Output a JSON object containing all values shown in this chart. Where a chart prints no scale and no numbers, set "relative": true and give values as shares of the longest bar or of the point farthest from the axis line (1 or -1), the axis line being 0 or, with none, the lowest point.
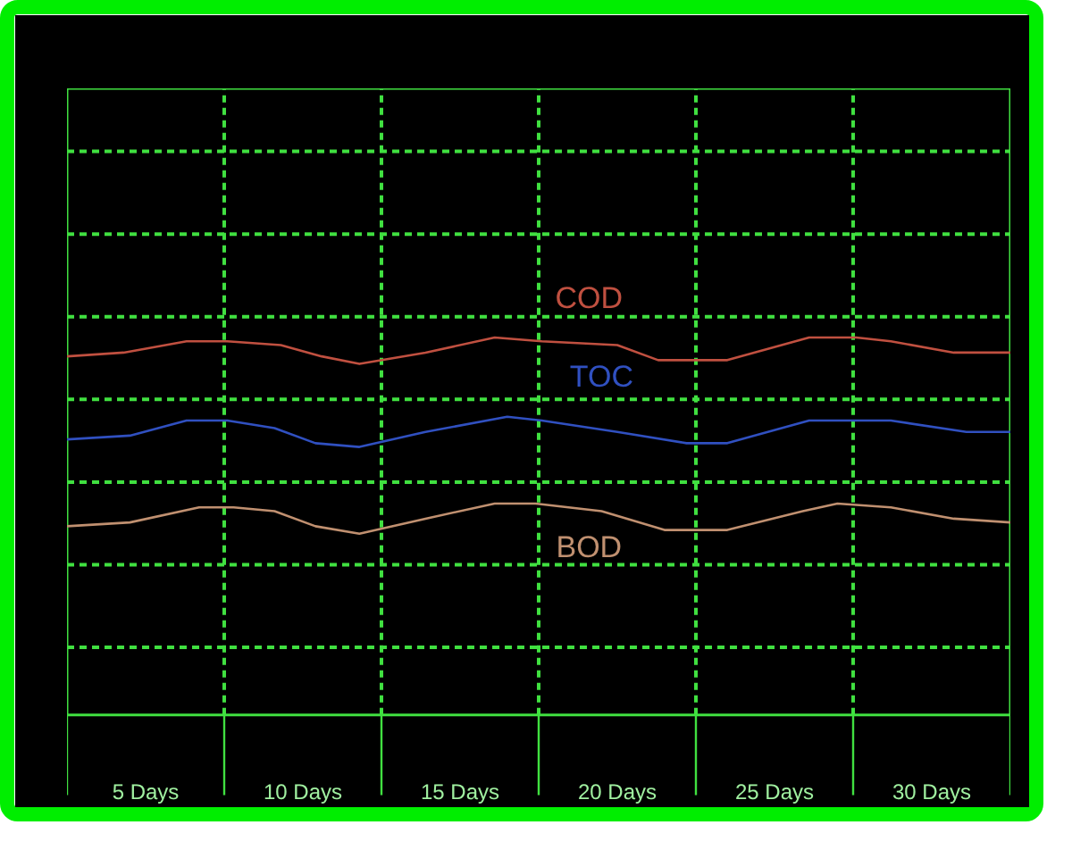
{
  "chart_data": {
    "type": "line",
    "relative": true,
    "grid": true,
    "xlim": [
      2.5,
      32.5
    ],
    "xticks": [
      {
        "value": 5,
        "label": "5 Days"
      },
      {
        "value": 7.5,
        "label": null
      },
      {
        "value": 10,
        "label": "10 Days"
      },
      {
        "value": 12.5,
        "label": null
      },
      {
        "value": 15,
        "label": "15 Days"
      },
      {
        "value": 17.5,
        "label": null
      },
      {
        "value": 20,
        "label": "20 Days"
      },
      {
        "value": 22.5,
        "label": null
      },
      {
        "value": 25,
        "label": "25 Days"
      },
      {
        "value": 27.5,
        "label": null
      },
      {
        "value": 30,
        "label": "30 Days"
      }
    ],
    "series": [
      {
        "name": "COD",
        "color": "#c05040",
        "x": [
          2.5,
          4.3,
          6.3,
          7.6,
          9.3,
          10.6,
          11.8,
          13.9,
          16.1,
          17.6,
          20.0,
          21.3,
          22.4,
          23.5,
          26.1,
          27.6,
          28.7,
          30.7,
          32.5
        ],
        "values": [
          0.95,
          0.96,
          0.99,
          0.99,
          0.98,
          0.95,
          0.93,
          0.96,
          1.0,
          0.99,
          0.98,
          0.94,
          0.94,
          0.94,
          1.0,
          1.0,
          0.99,
          0.96,
          0.96
        ]
      },
      {
        "name": "TOC",
        "color": "#3050c0",
        "x": [
          2.5,
          4.5,
          6.3,
          7.6,
          9.1,
          10.4,
          11.8,
          13.9,
          16.5,
          17.6,
          20.0,
          22.2,
          23.5,
          26.1,
          27.6,
          28.7,
          31.1,
          32.5
        ],
        "values": [
          0.73,
          0.74,
          0.78,
          0.78,
          0.76,
          0.72,
          0.71,
          0.75,
          0.79,
          0.78,
          0.75,
          0.72,
          0.72,
          0.78,
          0.78,
          0.78,
          0.75,
          0.75
        ]
      },
      {
        "name": "BOD",
        "color": "#c09070",
        "x": [
          2.5,
          4.5,
          6.7,
          7.8,
          9.1,
          10.4,
          11.8,
          13.9,
          16.1,
          17.4,
          19.5,
          21.5,
          23.5,
          25.9,
          27.0,
          28.7,
          30.7,
          32.5
        ],
        "values": [
          0.5,
          0.51,
          0.55,
          0.55,
          0.54,
          0.5,
          0.48,
          0.52,
          0.56,
          0.56,
          0.54,
          0.49,
          0.49,
          0.54,
          0.56,
          0.55,
          0.52,
          0.51
        ]
      }
    ]
  }
}
